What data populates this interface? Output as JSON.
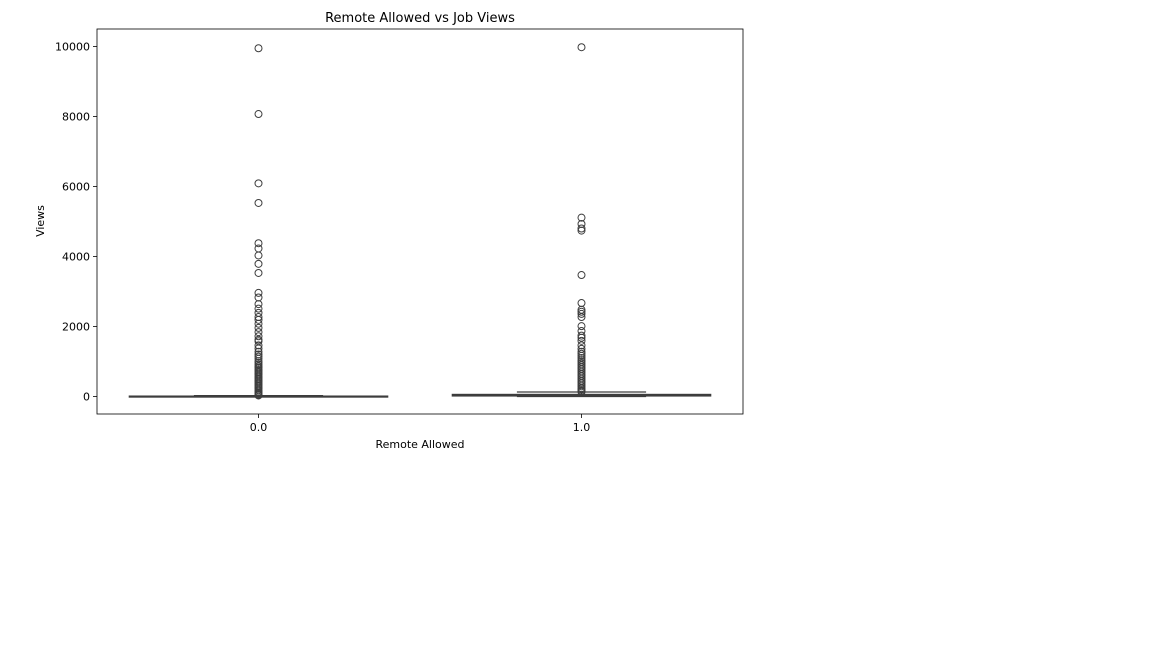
{
  "chart_data": {
    "type": "box",
    "title": "Remote Allowed vs Job Views",
    "xlabel": "Remote Allowed",
    "ylabel": "Views",
    "categories": [
      "0.0",
      "1.0"
    ],
    "ylim": [
      -500,
      10500
    ],
    "yticks": [
      0,
      2000,
      4000,
      6000,
      8000,
      10000
    ],
    "grid": false,
    "legend": "none",
    "box_color": "#1f77b4",
    "line_color": "#3d3d3d",
    "boxes": [
      {
        "category": "0.0",
        "whisker_low": 1,
        "q1": 3,
        "median": 6,
        "q3": 12,
        "whisker_high": 27,
        "outliers": [
          9950,
          8070,
          6090,
          5530,
          4380,
          4230,
          4030,
          3790,
          3530,
          2960,
          2830,
          2640,
          2510,
          2390,
          2270,
          2190,
          2080,
          1960,
          1840,
          1720,
          1620,
          1580,
          1460,
          1370,
          1280,
          1200,
          1140,
          1080,
          1010,
          960,
          910,
          860,
          820,
          780,
          740,
          700,
          660,
          620,
          580,
          540,
          500,
          460,
          420,
          380,
          340,
          300,
          260,
          220,
          180,
          140,
          100,
          70,
          45,
          30
        ]
      },
      {
        "category": "1.0",
        "whisker_low": 1,
        "q1": 15,
        "median": 31,
        "q3": 60,
        "whisker_high": 128,
        "outliers": [
          9980,
          5110,
          4930,
          4800,
          4740,
          3470,
          2670,
          2480,
          2420,
          2360,
          2270,
          2010,
          1870,
          1740,
          1680,
          1590,
          1460,
          1360,
          1280,
          1220,
          1160,
          1100,
          1040,
          990,
          940,
          890,
          840,
          790,
          740,
          690,
          640,
          590,
          540,
          490,
          440,
          390,
          340,
          290,
          240,
          200,
          160,
          135
        ]
      }
    ]
  }
}
